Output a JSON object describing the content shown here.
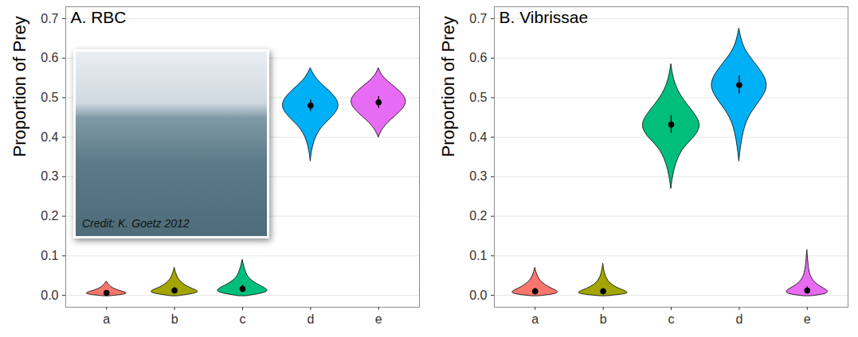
{
  "chart_data": [
    {
      "type": "violin",
      "title": "A. RBC",
      "y_label": "Proportion of Prey",
      "annotations": [
        "Credit: K. Goetz 2012"
      ],
      "categories": [
        "a",
        "b",
        "c",
        "d",
        "e"
      ],
      "values": [
        0.006,
        0.012,
        0.016,
        0.48,
        0.488
      ],
      "error_low": [
        0.002,
        0.006,
        0.008,
        0.465,
        0.473
      ],
      "error_high": [
        0.012,
        0.02,
        0.026,
        0.495,
        0.503
      ],
      "violins": [
        {
          "y": [
            -0.002,
            0.002,
            0.006,
            0.012,
            0.02,
            0.035
          ],
          "width": [
            0.05,
            0.28,
            0.31,
            0.18,
            0.06,
            0
          ]
        },
        {
          "y": [
            -0.002,
            0.004,
            0.01,
            0.02,
            0.035,
            0.05,
            0.07
          ],
          "width": [
            0.05,
            0.3,
            0.38,
            0.2,
            0.08,
            0.03,
            0
          ]
        },
        {
          "y": [
            -0.002,
            0.005,
            0.013,
            0.025,
            0.04,
            0.06,
            0.09
          ],
          "width": [
            0.05,
            0.32,
            0.4,
            0.25,
            0.1,
            0.04,
            0
          ]
        },
        {
          "y": [
            0.34,
            0.38,
            0.42,
            0.45,
            0.48,
            0.51,
            0.54,
            0.56,
            0.575
          ],
          "width": [
            0,
            0.03,
            0.12,
            0.32,
            0.45,
            0.33,
            0.12,
            0.04,
            0
          ]
        },
        {
          "y": [
            0.4,
            0.43,
            0.46,
            0.49,
            0.52,
            0.55,
            0.575
          ],
          "width": [
            0,
            0.08,
            0.3,
            0.45,
            0.3,
            0.06,
            0
          ]
        }
      ],
      "colors": [
        "#F8766D",
        "#A3A500",
        "#00BF7D",
        "#00B0F6",
        "#E76BF3"
      ],
      "ylim": [
        -0.03,
        0.73
      ],
      "yticks": [
        {
          "value": 0,
          "label": "0.0"
        },
        0.1,
        0.2,
        0.3,
        0.4,
        0.5,
        0.6,
        0.7
      ],
      "grid": true
    },
    {
      "type": "violin",
      "title": "B. Vibrissae",
      "y_label": "Proportion of Prey",
      "categories": [
        "a",
        "b",
        "c",
        "d",
        "e"
      ],
      "values": [
        0.01,
        0.01,
        0.432,
        0.532,
        0.012
      ],
      "error_low": [
        0.004,
        0.004,
        0.41,
        0.51,
        0.005
      ],
      "error_high": [
        0.018,
        0.018,
        0.455,
        0.555,
        0.022
      ],
      "violins": [
        {
          "y": [
            -0.002,
            0.003,
            0.01,
            0.02,
            0.035,
            0.05,
            0.07
          ],
          "width": [
            0.05,
            0.33,
            0.35,
            0.2,
            0.08,
            0.03,
            0
          ]
        },
        {
          "y": [
            -0.002,
            0.003,
            0.008,
            0.02,
            0.035,
            0.055,
            0.08
          ],
          "width": [
            0.05,
            0.35,
            0.38,
            0.18,
            0.07,
            0.02,
            0
          ]
        },
        {
          "y": [
            0.27,
            0.32,
            0.37,
            0.4,
            0.43,
            0.46,
            0.5,
            0.54,
            0.585
          ],
          "width": [
            0,
            0.04,
            0.15,
            0.35,
            0.45,
            0.35,
            0.15,
            0.04,
            0
          ]
        },
        {
          "y": [
            0.34,
            0.4,
            0.45,
            0.49,
            0.53,
            0.57,
            0.61,
            0.64,
            0.675
          ],
          "width": [
            0,
            0.04,
            0.12,
            0.3,
            0.45,
            0.32,
            0.12,
            0.04,
            0
          ]
        },
        {
          "y": [
            -0.002,
            0.003,
            0.012,
            0.025,
            0.045,
            0.07,
            0.115
          ],
          "width": [
            0.05,
            0.3,
            0.32,
            0.15,
            0.05,
            0.02,
            0
          ]
        }
      ],
      "colors": [
        "#F8766D",
        "#A3A500",
        "#00BF7D",
        "#00B0F6",
        "#E76BF3"
      ],
      "ylim": [
        -0.03,
        0.73
      ],
      "yticks": [
        {
          "value": 0,
          "label": "0.0"
        },
        0.1,
        0.2,
        0.3,
        0.4,
        0.5,
        0.6,
        0.7
      ],
      "grid": true
    }
  ]
}
